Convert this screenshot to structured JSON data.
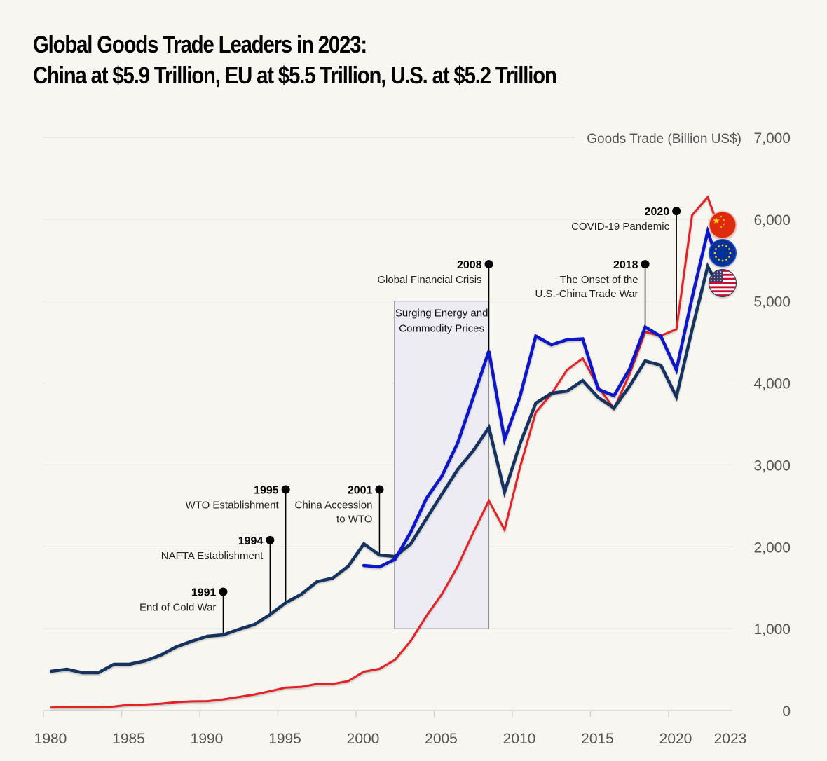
{
  "header": {
    "title_line1": "Global Goods Trade Leaders in 2023:",
    "title_line2": "China at $5.9 Trillion, EU at $5.5 Trillion, U.S. at $5.2 Trillion"
  },
  "chart_data": {
    "type": "line",
    "title": "Global Goods Trade Leaders in 2023: China at $5.9 Trillion, EU at $5.5 Trillion, U.S. at $5.2 Trillion",
    "xlabel": "",
    "ylabel": "Goods Trade (Billion US$)",
    "xlim": [
      1980,
      2023
    ],
    "ylim": [
      0,
      7000
    ],
    "x_ticks": [
      "1980",
      "1985",
      "1990",
      "1995",
      "2000",
      "2005",
      "2010",
      "2015",
      "2020",
      "2023"
    ],
    "y_ticks": [
      "0",
      "1,000",
      "2,000",
      "3,000",
      "4,000",
      "5,000",
      "6,000",
      "7,000"
    ],
    "grid": "horizontal",
    "y_axis_side": "right",
    "series": [
      {
        "name": "China",
        "color": "#e32028",
        "flag": "china-flag",
        "start_year": 1980,
        "values": [
          38,
          40,
          40,
          40,
          50,
          70,
          74,
          83,
          103,
          112,
          115,
          136,
          166,
          196,
          237,
          281,
          290,
          325,
          324,
          361,
          474,
          510,
          621,
          851,
          1155,
          1422,
          1760,
          2174,
          2563,
          2208,
          2974,
          3642,
          3867,
          4160,
          4302,
          3955,
          3686,
          4107,
          4623,
          4578,
          4656,
          6050,
          6270,
          5940
        ]
      },
      {
        "name": "EU",
        "color": "#0a14c8",
        "flag": "eu-flag",
        "start_year": 2000,
        "values": [
          1771,
          1754,
          1848,
          2179,
          2591,
          2866,
          3266,
          3826,
          4390,
          3310,
          3840,
          4573,
          4467,
          4528,
          4540,
          3924,
          3845,
          4170,
          4683,
          4570,
          4160,
          5040,
          5850,
          5500
        ]
      },
      {
        "name": "U.S.",
        "color": "#12325e",
        "flag": "us-flag",
        "start_year": 1980,
        "values": [
          480,
          505,
          462,
          462,
          565,
          565,
          607,
          676,
          778,
          847,
          907,
          924,
          992,
          1052,
          1172,
          1317,
          1420,
          1574,
          1617,
          1762,
          2036,
          1899,
          1882,
          2036,
          2344,
          2643,
          2943,
          3174,
          3456,
          2669,
          3259,
          3755,
          3875,
          3901,
          4029,
          3824,
          3695,
          3961,
          4269,
          4217,
          3832,
          4654,
          5423,
          5200
        ]
      }
    ],
    "shaded_region": {
      "label_line1": "Surging Energy and",
      "label_line2": "Commodity Prices",
      "x_start": 2002,
      "x_end": 2008,
      "y_start": 1000,
      "y_end": 5000
    },
    "annotations": [
      {
        "year": "1991",
        "label": [
          "End of Cold War"
        ],
        "x": 1991,
        "pin_value": 1450,
        "line_to": 924
      },
      {
        "year": "1994",
        "label": [
          "NAFTA Establishment"
        ],
        "x": 1994,
        "pin_value": 2080,
        "line_to": 1172
      },
      {
        "year": "1995",
        "label": [
          "WTO Establishment"
        ],
        "x": 1995,
        "pin_value": 2700,
        "line_to": 1317
      },
      {
        "year": "2001",
        "label": [
          "China Accession",
          "to WTO"
        ],
        "x": 2001,
        "pin_value": 2700,
        "line_to": 1899
      },
      {
        "year": "2008",
        "label": [
          "Global Financial Crisis"
        ],
        "x": 2008,
        "pin_value": 5450,
        "line_to": 4390
      },
      {
        "year": "2018",
        "label": [
          "The Onset of the",
          "U.S.-China Trade War"
        ],
        "x": 2018,
        "pin_value": 5450,
        "line_to": 4683
      },
      {
        "year": "2020",
        "label": [
          "COVID-19 Pandemic"
        ],
        "x": 2020,
        "pin_value": 6100,
        "line_to": 4656
      }
    ]
  }
}
